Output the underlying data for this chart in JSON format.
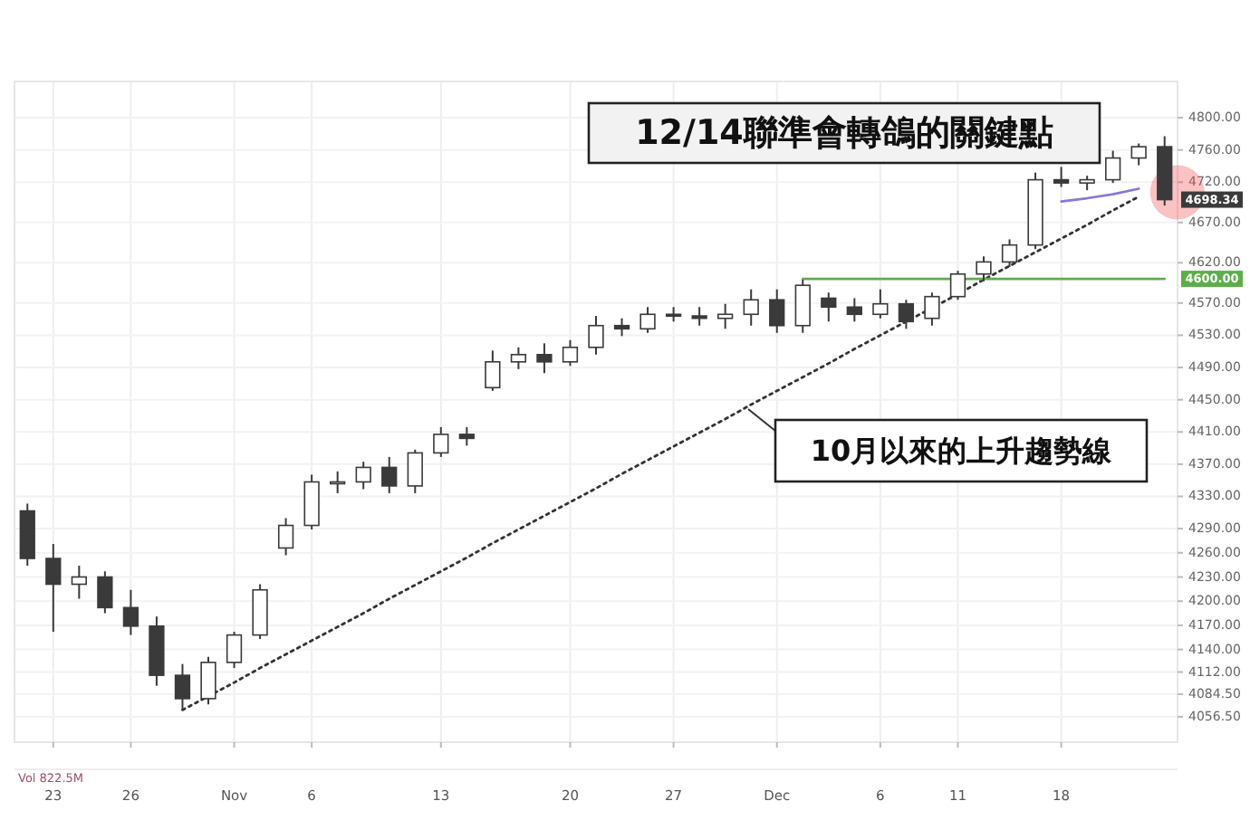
{
  "chart_data": {
    "type": "candlestick",
    "color": "#3a3a3a",
    "grid": true,
    "categories": [
      null,
      "23",
      null,
      null,
      "26",
      null,
      null,
      null,
      "Nov",
      null,
      null,
      "6",
      null,
      null,
      null,
      null,
      "13",
      null,
      null,
      null,
      null,
      "20",
      null,
      null,
      null,
      "27",
      null,
      null,
      null,
      "Dec",
      null,
      null,
      null,
      "6",
      null,
      null,
      "11",
      null,
      null,
      null,
      "18",
      null,
      null,
      null,
      null
    ],
    "ohlc": [
      [
        4312,
        4321,
        4244,
        4253
      ],
      [
        4253,
        4271,
        4162,
        4221
      ],
      [
        4221,
        4244,
        4203,
        4230
      ],
      [
        4230,
        4237,
        4185,
        4192
      ],
      [
        4192,
        4214,
        4158,
        4169
      ],
      [
        4169,
        4181,
        4095,
        4108
      ],
      [
        4108,
        4122,
        4065,
        4079
      ],
      [
        4079,
        4131,
        4072,
        4124
      ],
      [
        4124,
        4162,
        4117,
        4158
      ],
      [
        4158,
        4221,
        4153,
        4214
      ],
      [
        4266,
        4303,
        4257,
        4294
      ],
      [
        4294,
        4357,
        4289,
        4348
      ],
      [
        4348,
        4361,
        4334,
        4348
      ],
      [
        4348,
        4373,
        4339,
        4366
      ],
      [
        4366,
        4379,
        4334,
        4343
      ],
      [
        4343,
        4388,
        4334,
        4384
      ],
      [
        4384,
        4416,
        4379,
        4407
      ],
      [
        4407,
        4416,
        4393,
        4402
      ],
      [
        4465,
        4511,
        4461,
        4497
      ],
      [
        4497,
        4515,
        4488,
        4506
      ],
      [
        4506,
        4520,
        4483,
        4497
      ],
      [
        4497,
        4524,
        4492,
        4515
      ],
      [
        4515,
        4554,
        4506,
        4542
      ],
      [
        4542,
        4551,
        4529,
        4538
      ],
      [
        4538,
        4565,
        4533,
        4556
      ],
      [
        4556,
        4565,
        4547,
        4554
      ],
      [
        4554,
        4565,
        4542,
        4551
      ],
      [
        4551,
        4569,
        4538,
        4556
      ],
      [
        4556,
        4587,
        4542,
        4574
      ],
      [
        4574,
        4587,
        4533,
        4542
      ],
      [
        4542,
        4599,
        4533,
        4592
      ],
      [
        4576,
        4583,
        4547,
        4565
      ],
      [
        4565,
        4576,
        4547,
        4556
      ],
      [
        4556,
        4587,
        4551,
        4569
      ],
      [
        4569,
        4574,
        4538,
        4547
      ],
      [
        4551,
        4583,
        4542,
        4578
      ],
      [
        4578,
        4610,
        4574,
        4606
      ],
      [
        4606,
        4628,
        4597,
        4621
      ],
      [
        4621,
        4649,
        4615,
        4642
      ],
      [
        4642,
        4732,
        4637,
        4723
      ],
      [
        4723,
        4739,
        4714,
        4719
      ],
      [
        4719,
        4728,
        4710,
        4723
      ],
      [
        4723,
        4759,
        4719,
        4750
      ],
      [
        4750,
        4768,
        4741,
        4764
      ],
      [
        4764,
        4777,
        4691,
        4698.34
      ]
    ],
    "series": [
      {
        "type": "line",
        "color": "#333333",
        "line_style": "dotted",
        "values": [
          null,
          null,
          null,
          null,
          null,
          null,
          4065,
          4082,
          4099,
          4117,
          4134,
          4151,
          4168,
          4185,
          4203,
          4220,
          4237,
          4254,
          4272,
          4289,
          4306,
          4323,
          4340,
          4358,
          4375,
          4392,
          4409,
          4426,
          4444,
          4461,
          4478,
          4495,
          4513,
          4530,
          4547,
          4564,
          4581,
          4599,
          4616,
          4633,
          4650,
          4667,
          4685,
          4702,
          null
        ]
      },
      {
        "type": "line",
        "color": "#5cae4a",
        "line_style": "solid",
        "values": [
          null,
          null,
          null,
          null,
          null,
          null,
          null,
          null,
          null,
          null,
          null,
          null,
          null,
          null,
          null,
          null,
          null,
          null,
          null,
          null,
          null,
          null,
          null,
          null,
          null,
          null,
          null,
          null,
          null,
          null,
          4600,
          4600,
          4600,
          4600,
          4600,
          4600,
          4600,
          4600,
          4600,
          4600,
          4600,
          4600,
          4600,
          4600,
          4600
        ]
      },
      {
        "type": "line",
        "color": "#8878d8",
        "line_style": "solid",
        "values": [
          null,
          null,
          null,
          null,
          null,
          null,
          null,
          null,
          null,
          null,
          null,
          null,
          null,
          null,
          null,
          null,
          null,
          null,
          null,
          null,
          null,
          null,
          null,
          null,
          null,
          null,
          null,
          null,
          null,
          null,
          null,
          null,
          null,
          null,
          null,
          null,
          null,
          null,
          null,
          null,
          4696,
          4700,
          4705,
          4712,
          null
        ]
      }
    ],
    "ylim": [
      4025,
      4845
    ],
    "yticks": [
      {
        "value": 4800,
        "label": "4800.00"
      },
      {
        "value": 4760,
        "label": "4760.00"
      },
      {
        "value": 4720,
        "label": "4720.00"
      },
      {
        "value": 4670,
        "label": "4670.00"
      },
      {
        "value": 4620,
        "label": "4620.00"
      },
      {
        "value": 4570,
        "label": "4570.00"
      },
      {
        "value": 4530,
        "label": "4530.00"
      },
      {
        "value": 4490,
        "label": "4490.00"
      },
      {
        "value": 4450,
        "label": "4450.00"
      },
      {
        "value": 4410,
        "label": "4410.00"
      },
      {
        "value": 4370,
        "label": "4370.00"
      },
      {
        "value": 4330,
        "label": "4330.00"
      },
      {
        "value": 4290,
        "label": "4290.00"
      },
      {
        "value": 4260,
        "label": "4260.00"
      },
      {
        "value": 4230,
        "label": "4230.00"
      },
      {
        "value": 4200,
        "label": "4200.00"
      },
      {
        "value": 4170,
        "label": "4170.00"
      },
      {
        "value": 4140,
        "label": "4140.00"
      },
      {
        "value": 4112,
        "label": "4112.00"
      },
      {
        "value": 4084.5,
        "label": "4084.50"
      },
      {
        "value": 4056.5,
        "label": "4056.50"
      }
    ],
    "annotations": [
      "12/14聯準會轉鴿的關鍵點",
      "10月以來的上升趨勢線",
      "Vol 822.5M",
      "4698.34",
      "4600.00"
    ]
  }
}
